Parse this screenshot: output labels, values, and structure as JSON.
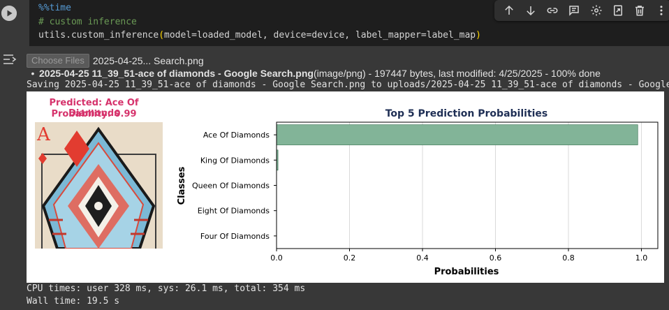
{
  "code": {
    "line1": "%%time",
    "line2": "# custom inference",
    "line3_func": "utils.custom_inference",
    "line3_open": "(",
    "line3_args": "model=loaded_model, device=device, label_mapper=label_map",
    "line3_close": ")"
  },
  "toolbar": {
    "icons": [
      "arrow-up-icon",
      "arrow-down-icon",
      "link-icon",
      "comment-icon",
      "gear-icon",
      "mirror-icon",
      "trash-icon",
      "more-icon"
    ]
  },
  "upload": {
    "choose_label": "Choose Files",
    "selected_text": "2025-04-25... Search.png"
  },
  "file_entry": {
    "name": "2025-04-25 11_39_51-ace of diamonds - Google Search.png",
    "details": "(image/png) - 197447 bytes, last modified: 4/25/2025 - 100% done"
  },
  "saving_line": "Saving 2025-04-25 11_39_51-ace of diamonds - Google Search.png to uploads/2025-04-25 11_39_51-ace of diamonds - Google Search.png",
  "prediction": {
    "predicted": "Predicted: Ace Of Diamonds",
    "probability": "Probability: 0.99",
    "color": "#d6336c",
    "card_rank": "A"
  },
  "chart_data": {
    "type": "bar",
    "orientation": "horizontal",
    "title": "Top 5 Prediction Probabilities",
    "xlabel": "Probabilities",
    "ylabel": "Classes",
    "categories": [
      "Ace Of Diamonds",
      "King Of Diamonds",
      "Queen Of Diamonds",
      "Eight Of Diamonds",
      "Four Of Diamonds"
    ],
    "values": [
      0.99,
      0.004,
      0.0005,
      0.0003,
      0.0002
    ],
    "xlim": [
      0,
      1.045
    ],
    "xticks": [
      "0.0",
      "0.2",
      "0.4",
      "0.6",
      "0.8",
      "1.0"
    ],
    "grid": "x",
    "bar_color": "#82b498",
    "bar_edge": "#2e6b4a"
  },
  "timing": {
    "cpu": "CPU times: user 328 ms, sys: 26.1 ms, total: 354 ms",
    "wall": "Wall time: 19.5 s"
  }
}
